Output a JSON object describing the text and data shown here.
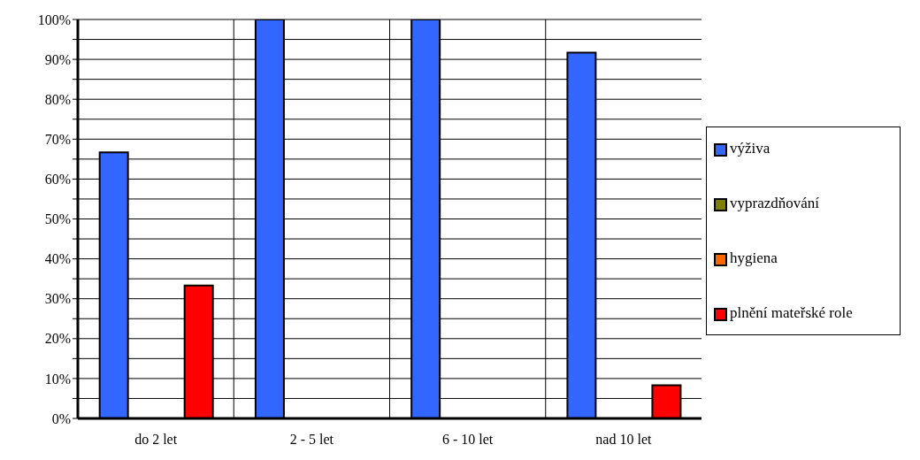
{
  "chart_data": {
    "type": "bar",
    "categories": [
      "do 2 let",
      "2 - 5 let",
      "6 - 10 let",
      "nad 10 let"
    ],
    "series": [
      {
        "name": "výživa",
        "color": "#3366ff",
        "values": [
          66.7,
          100,
          100,
          91.7
        ]
      },
      {
        "name": "vyprazdňování",
        "color": "#808000",
        "values": [
          0,
          0,
          0,
          0
        ]
      },
      {
        "name": "hygiena",
        "color": "#ff6600",
        "values": [
          0,
          0,
          0,
          0
        ]
      },
      {
        "name": "plnění mateřské role",
        "color": "#ff0000",
        "values": [
          33.3,
          0,
          0,
          8.3
        ]
      }
    ],
    "ylim": [
      0,
      100
    ],
    "yticks": [
      {
        "value": 0,
        "label": "0%"
      },
      {
        "value": 5,
        "label": null
      },
      {
        "value": 10,
        "label": "10%"
      },
      {
        "value": 15,
        "label": null
      },
      {
        "value": 20,
        "label": "20%"
      },
      {
        "value": 25,
        "label": null
      },
      {
        "value": 30,
        "label": "30%"
      },
      {
        "value": 35,
        "label": null
      },
      {
        "value": 40,
        "label": "40%"
      },
      {
        "value": 45,
        "label": null
      },
      {
        "value": 50,
        "label": "50%"
      },
      {
        "value": 55,
        "label": null
      },
      {
        "value": 60,
        "label": "60%"
      },
      {
        "value": 65,
        "label": null
      },
      {
        "value": 70,
        "label": "70%"
      },
      {
        "value": 75,
        "label": null
      },
      {
        "value": 80,
        "label": "80%"
      },
      {
        "value": 85,
        "label": null
      },
      {
        "value": 90,
        "label": "90%"
      },
      {
        "value": 95,
        "label": null
      },
      {
        "value": 100,
        "label": "100%"
      }
    ],
    "grid": true,
    "legend": "right"
  }
}
